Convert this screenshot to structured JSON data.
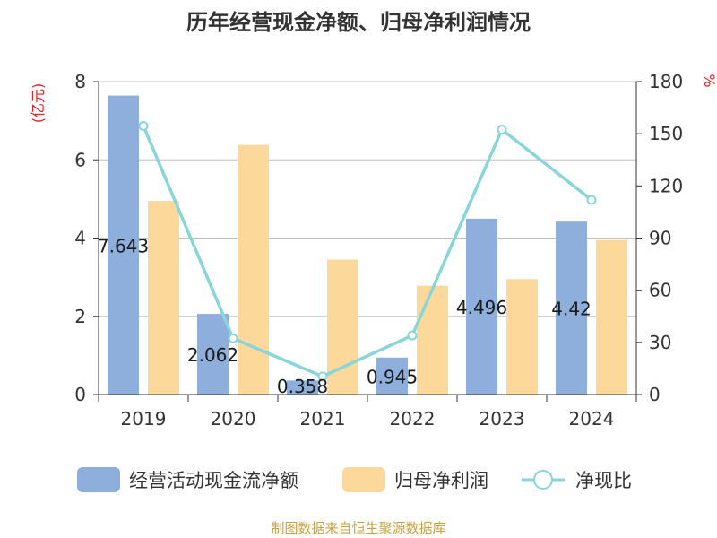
{
  "chart_data": {
    "type": "bar",
    "title": "历年经营现金净额、归母净利润情况",
    "categories": [
      "2019",
      "2020",
      "2021",
      "2022",
      "2023",
      "2024"
    ],
    "y_left": {
      "unit_label": "(亿元)",
      "ticks": [
        "0",
        "2",
        "4",
        "6",
        "8"
      ],
      "ylim": [
        0,
        8
      ]
    },
    "y_right": {
      "unit_label": "%",
      "ticks": [
        "0",
        "30",
        "60",
        "90",
        "120",
        "150",
        "180"
      ],
      "ylim": [
        0,
        180
      ]
    },
    "series": [
      {
        "name": "经营活动现金流净额",
        "type": "bar",
        "axis": "left",
        "values": [
          7.643,
          2.062,
          0.358,
          0.945,
          4.496,
          4.42
        ],
        "labels": [
          "7.643",
          "2.062",
          "0.358",
          "0.945",
          "4.496",
          "4.42"
        ],
        "color": "#8eaedc"
      },
      {
        "name": "归母净利润",
        "type": "bar",
        "axis": "left",
        "values": [
          4.95,
          6.38,
          3.45,
          2.78,
          2.95,
          3.95
        ],
        "color": "#fdd89b"
      },
      {
        "name": "净现比",
        "type": "line",
        "axis": "right",
        "values": [
          154.5,
          32.3,
          10.4,
          34.0,
          152.4,
          111.9
        ],
        "color": "#88d5da"
      }
    ],
    "grid": true,
    "legend_position": "bottom",
    "source": "制图数据来自恒生聚源数据库"
  },
  "colors": {
    "title": "#333333",
    "axis_text": "#333333",
    "unit_text": "#e02020",
    "source_text": "#c8a040",
    "grid": "#c0c0c0"
  }
}
